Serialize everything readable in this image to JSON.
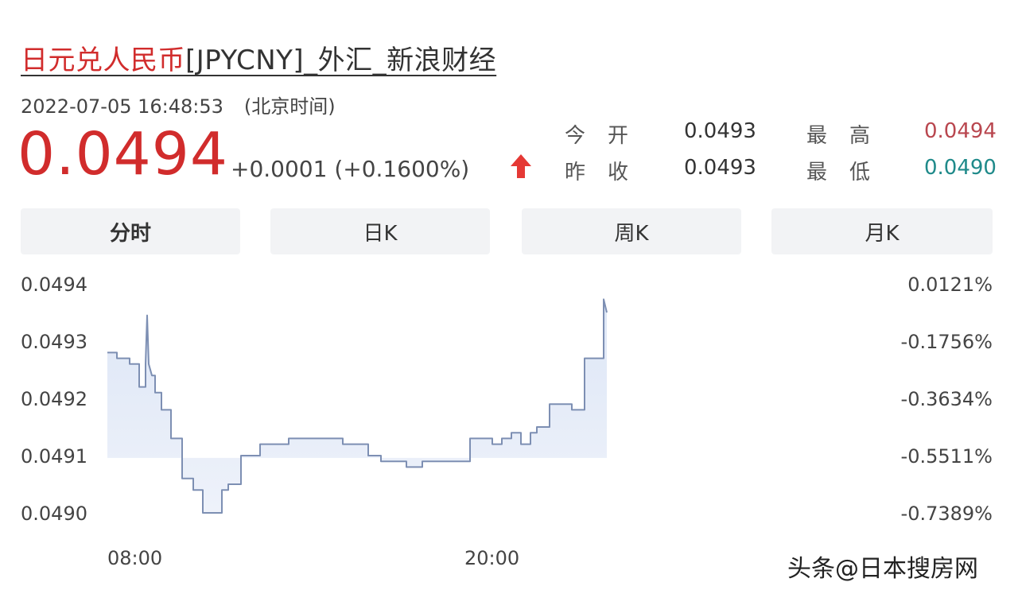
{
  "header": {
    "title_link": "日元兑人民币",
    "title_rest": "[JPYCNY]_外汇_新浪财经",
    "timestamp": "2022-07-05 16:48:53",
    "timezone": "(北京时间)"
  },
  "quote": {
    "price": "0.0494",
    "change": "+0.0001 (+0.1600%)",
    "direction": "up",
    "up_color": "#e53935"
  },
  "stats": {
    "open_label": "今开",
    "open_value": "0.0493",
    "high_label": "最高",
    "high_value": "0.0494",
    "prev_close_label": "昨收",
    "prev_close_value": "0.0493",
    "low_label": "最低",
    "low_value": "0.0490"
  },
  "tabs": [
    {
      "label": "分时",
      "active": true
    },
    {
      "label": "日K",
      "active": false
    },
    {
      "label": "周K",
      "active": false
    },
    {
      "label": "月K",
      "active": false
    }
  ],
  "chart_data": {
    "type": "area",
    "x_tick_labels": [
      "08:00",
      "20:00"
    ],
    "x_range_hours": [
      7.6,
      31.6
    ],
    "ylim": [
      0.049,
      0.0494
    ],
    "y_tick_labels_left": [
      "0.0494",
      "0.0493",
      "0.0492",
      "0.0491",
      "0.0490"
    ],
    "y_tick_labels_right": [
      "0.0121%",
      "-0.1756%",
      "-0.3634%",
      "-0.5511%",
      "-0.7389%"
    ],
    "base_value": 0.049096,
    "line_color": "#7d8fb3",
    "fill_color": "#dde6f6",
    "series": [
      {
        "x": [
          7.6,
          7.9,
          7.9,
          8.3,
          8.3,
          8.6,
          8.6,
          8.8,
          8.8,
          8.85,
          8.9,
          9.0,
          9.1,
          9.1,
          9.3,
          9.3,
          9.6,
          9.6,
          9.95,
          9.95,
          10.3,
          10.3,
          10.6,
          10.6,
          11.2,
          11.2,
          11.4,
          11.4,
          11.8,
          11.8,
          12.4,
          12.4,
          13.3,
          13.3,
          15.0,
          15.0,
          15.8,
          15.8,
          16.2,
          16.2,
          17.0,
          17.0,
          17.5,
          17.5,
          19.0,
          19.0,
          19.7,
          19.7,
          20.0,
          20.0,
          20.3,
          20.3,
          20.6,
          20.6,
          20.9,
          20.9,
          21.1,
          21.1,
          21.5,
          21.5,
          22.2,
          22.2,
          22.6,
          22.6,
          22.9,
          22.9,
          23.2,
          23.2,
          23.3
        ],
        "y": [
          0.04928,
          0.04928,
          0.04927,
          0.04927,
          0.04926,
          0.04926,
          0.04922,
          0.04922,
          0.04926,
          0.049345,
          0.04926,
          0.04924,
          0.04924,
          0.04921,
          0.04921,
          0.04918,
          0.04918,
          0.04913,
          0.04913,
          0.04906,
          0.04906,
          0.04904,
          0.04904,
          0.049,
          0.049,
          0.04904,
          0.04904,
          0.04905,
          0.04905,
          0.0491,
          0.0491,
          0.04912,
          0.04912,
          0.04913,
          0.04913,
          0.04912,
          0.04912,
          0.0491,
          0.0491,
          0.04909,
          0.04909,
          0.04908,
          0.04908,
          0.04909,
          0.04909,
          0.04913,
          0.04913,
          0.04912,
          0.04912,
          0.04913,
          0.04913,
          0.04914,
          0.04914,
          0.04912,
          0.04912,
          0.04914,
          0.04914,
          0.04915,
          0.04915,
          0.04919,
          0.04919,
          0.04918,
          0.04918,
          0.04927,
          0.04927,
          0.04927,
          0.04927,
          0.049373,
          0.04935
        ]
      }
    ]
  },
  "watermark": "头条@日本搜房网"
}
